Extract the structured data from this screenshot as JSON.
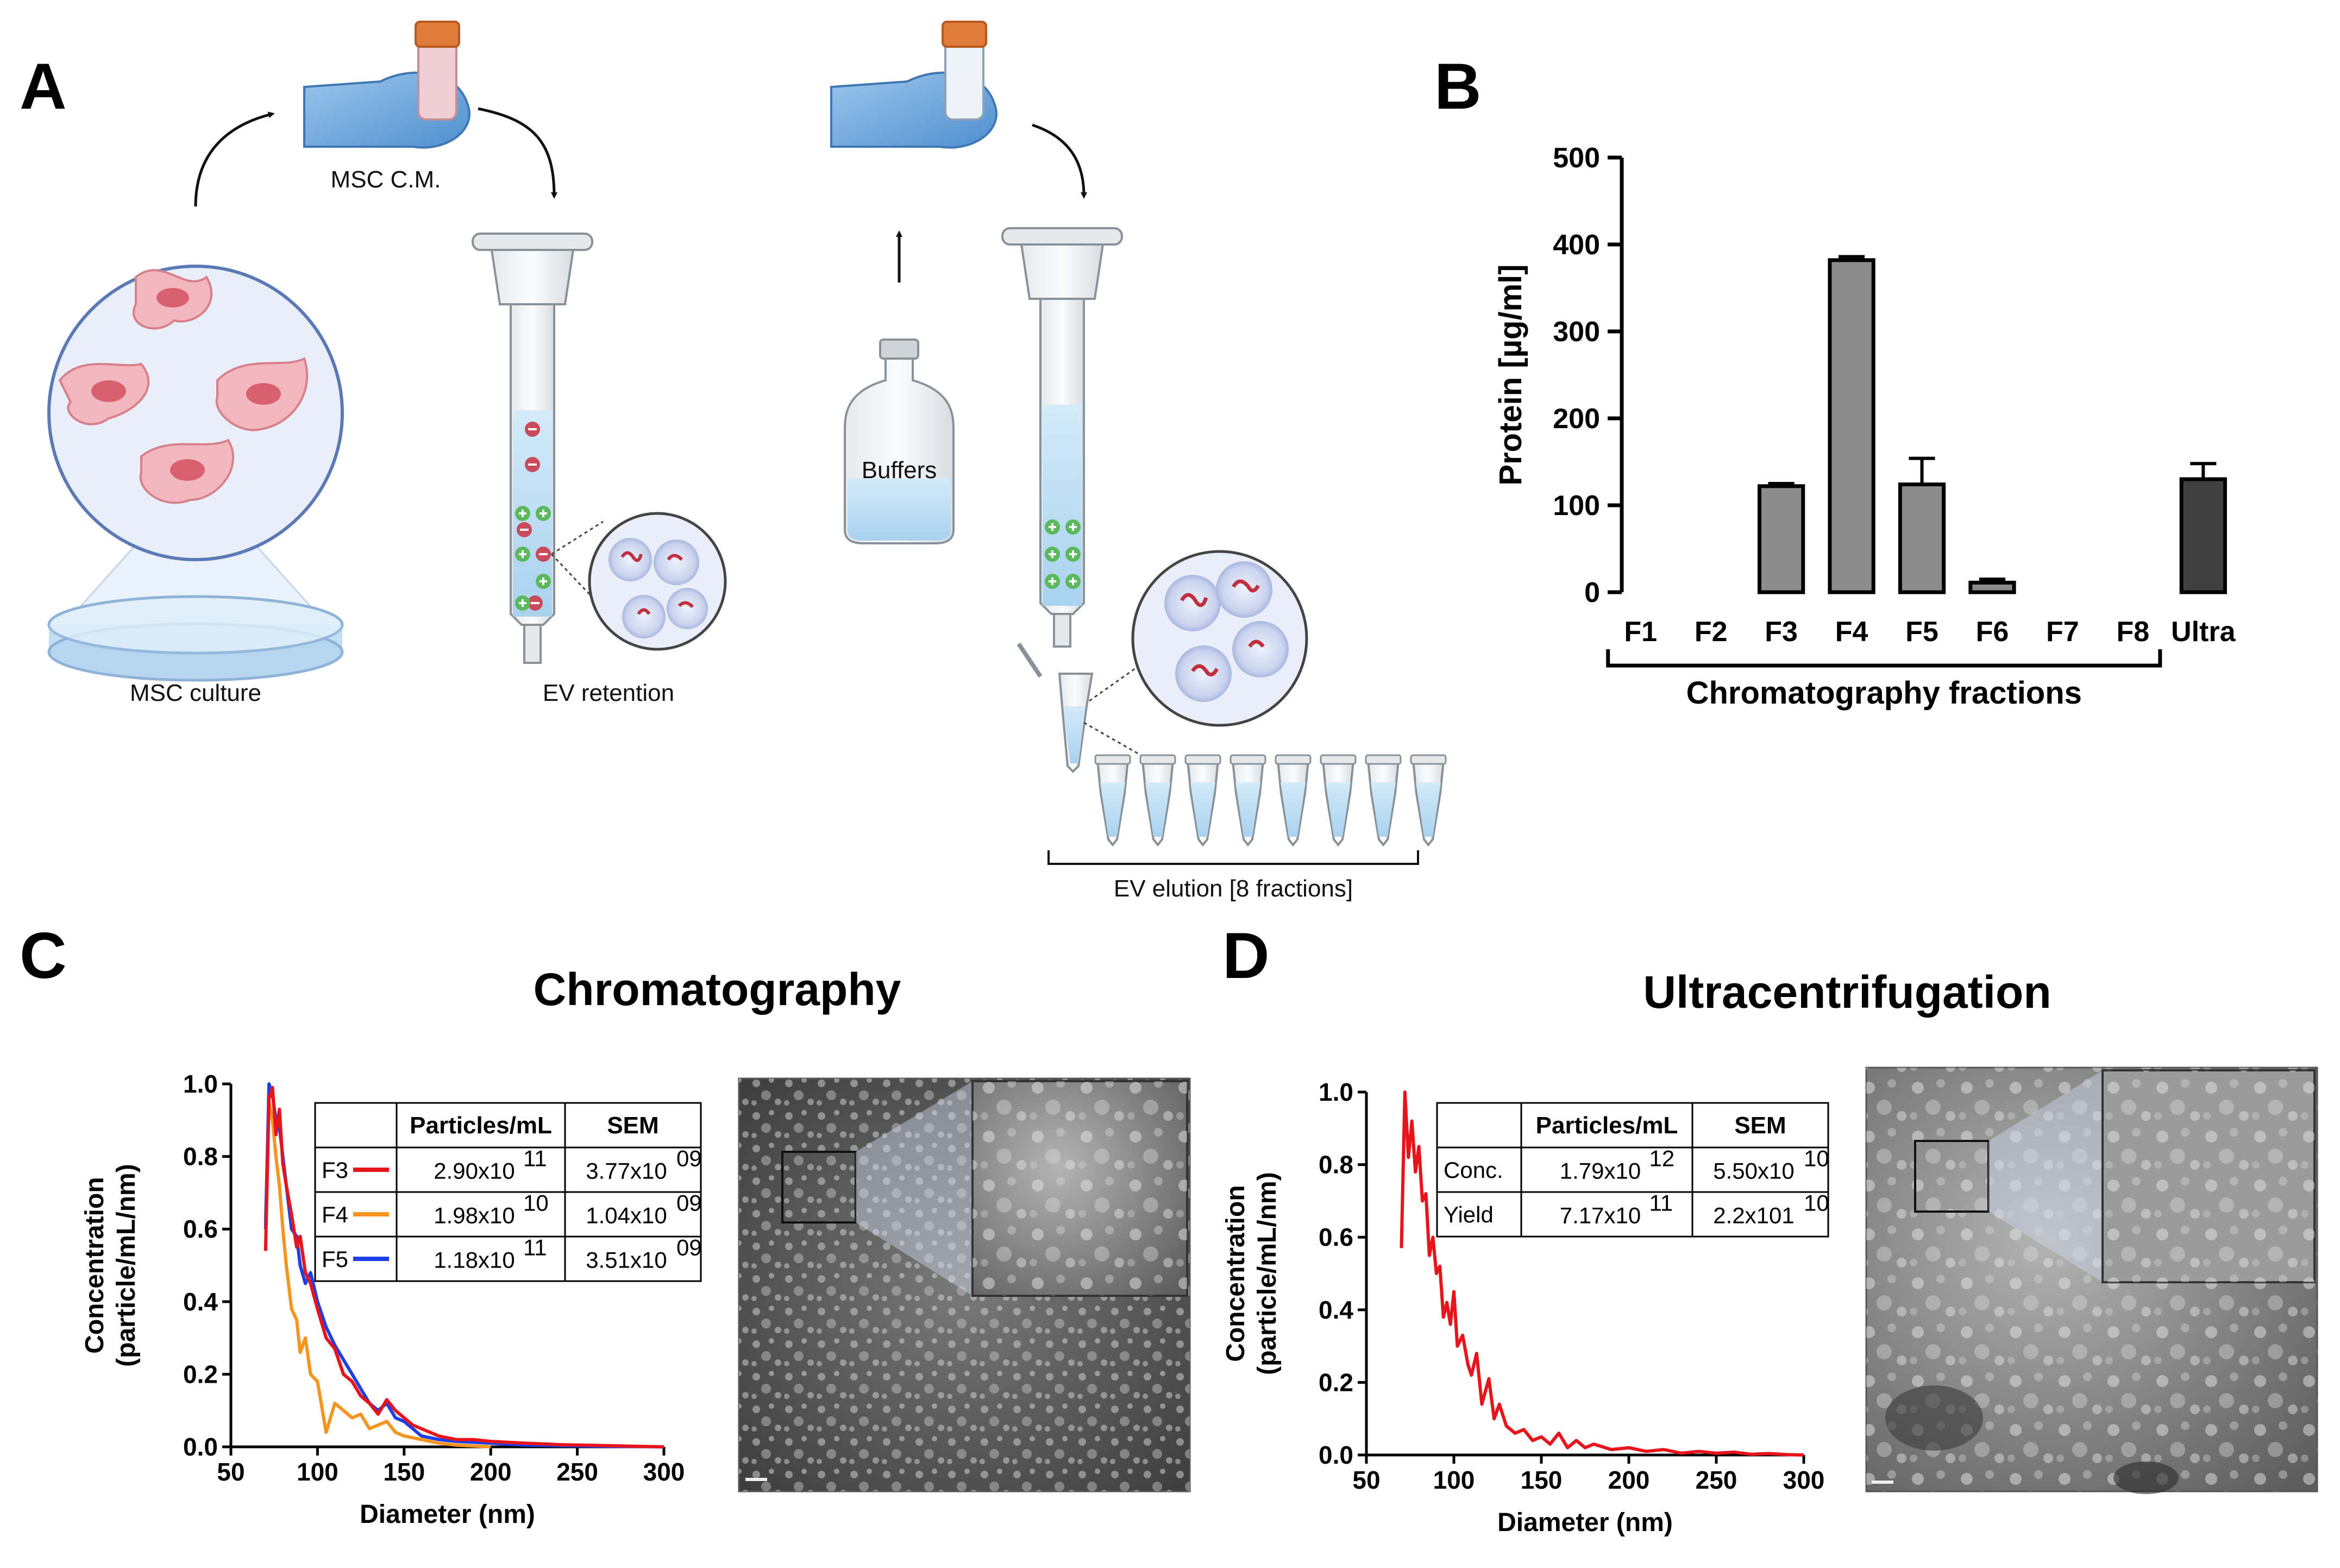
{
  "panels": {
    "a": "A",
    "b": "B",
    "c": "C",
    "d": "D"
  },
  "schematic": {
    "msc_cm": "MSC C.M.",
    "msc_culture": "MSC culture",
    "ev_retention": "EV retention",
    "buffers": "Buffers",
    "ev_elution": "EV elution [8 fractions]"
  },
  "colors": {
    "bar_fraction": "#8c8c8c",
    "bar_ultra": "#404040",
    "line_f3": "#e8141b",
    "line_f4": "#f7941d",
    "line_f5": "#1d3fe8",
    "cell_fill": "#f2b8be",
    "cell_nucleus": "#d9616f",
    "glove": "#6fa8dc",
    "column_liquid": "#bcdcf2"
  },
  "chart_data": [
    {
      "panel": "B",
      "type": "bar",
      "categories": [
        "F1",
        "F2",
        "F3",
        "F4",
        "F5",
        "F6",
        "F7",
        "F8",
        "Ultra"
      ],
      "values": [
        0,
        0,
        122,
        382,
        124,
        11,
        0,
        0,
        130
      ],
      "errors": [
        0,
        0,
        3,
        4,
        30,
        4,
        0,
        0,
        18
      ],
      "ylabel": "Protein [µg/ml]",
      "xlabel": "Chromatography fractions",
      "ylim": [
        0,
        500
      ],
      "yticks": [
        0,
        100,
        200,
        300,
        400,
        500
      ],
      "bracket_spans": [
        "F1",
        "F8"
      ]
    },
    {
      "panel": "C",
      "type": "line",
      "title": "Chromatography",
      "xlabel": "Diameter (nm)",
      "ylabel_line1": "Concentration",
      "ylabel_line2": "(particle/mL/nm)",
      "xlim": [
        50,
        300
      ],
      "ylim": [
        0,
        1.0
      ],
      "xticks": [
        50,
        100,
        150,
        200,
        250,
        300
      ],
      "yticks": [
        "0.0",
        "0.2",
        "0.4",
        "0.6",
        "0.8",
        "1.0"
      ],
      "series": [
        {
          "name": "F3",
          "x": [
            70,
            72,
            74,
            76,
            78,
            80,
            82,
            85,
            88,
            90,
            93,
            96,
            100,
            105,
            110,
            115,
            120,
            125,
            130,
            135,
            140,
            145,
            150,
            155,
            160,
            170,
            180,
            190,
            200,
            220,
            240,
            260,
            280,
            300
          ],
          "y": [
            0.54,
            0.96,
            0.99,
            0.86,
            0.93,
            0.78,
            0.72,
            0.64,
            0.55,
            0.58,
            0.48,
            0.45,
            0.38,
            0.3,
            0.27,
            0.2,
            0.18,
            0.14,
            0.12,
            0.09,
            0.13,
            0.1,
            0.08,
            0.06,
            0.05,
            0.03,
            0.02,
            0.02,
            0.015,
            0.01,
            0.006,
            0.004,
            0.002,
            0.0
          ]
        },
        {
          "name": "F4",
          "x": [
            70,
            72,
            74,
            76,
            78,
            80,
            82,
            85,
            88,
            90,
            93,
            96,
            100,
            105,
            110,
            115,
            120,
            125,
            130,
            135,
            140,
            145,
            150,
            160,
            170,
            180,
            200
          ],
          "y": [
            0.62,
            0.95,
            0.9,
            0.8,
            0.72,
            0.6,
            0.5,
            0.38,
            0.35,
            0.26,
            0.3,
            0.2,
            0.18,
            0.04,
            0.12,
            0.1,
            0.08,
            0.09,
            0.05,
            0.06,
            0.07,
            0.04,
            0.03,
            0.02,
            0.01,
            0.005,
            0.0
          ]
        },
        {
          "name": "F5",
          "x": [
            70,
            72,
            74,
            76,
            78,
            80,
            82,
            85,
            88,
            90,
            93,
            96,
            100,
            105,
            110,
            115,
            120,
            125,
            130,
            135,
            140,
            145,
            150,
            155,
            160,
            170,
            180,
            200,
            220,
            260,
            300
          ],
          "y": [
            0.6,
            1.0,
            0.97,
            0.9,
            0.88,
            0.8,
            0.72,
            0.6,
            0.58,
            0.5,
            0.45,
            0.48,
            0.4,
            0.33,
            0.28,
            0.24,
            0.2,
            0.16,
            0.12,
            0.1,
            0.12,
            0.08,
            0.07,
            0.05,
            0.03,
            0.02,
            0.015,
            0.01,
            0.005,
            0.002,
            0.0
          ]
        }
      ],
      "table": {
        "headers": [
          "",
          "Particles/mL",
          "SEM"
        ],
        "rows": [
          {
            "label": "F3",
            "particles": "2.90x10",
            "particles_exp": "11",
            "sem": "3.77x10",
            "sem_exp": "09"
          },
          {
            "label": "F4",
            "particles": "1.98x10",
            "particles_exp": "10",
            "sem": "1.04x10",
            "sem_exp": "09"
          },
          {
            "label": "F5",
            "particles": "1.18x10",
            "particles_exp": "11",
            "sem": "3.51x10",
            "sem_exp": "09"
          }
        ]
      }
    },
    {
      "panel": "D",
      "type": "line",
      "title": "Ultracentrifugation",
      "xlabel": "Diameter (nm)",
      "ylabel_line1": "Concentration",
      "ylabel_line2": "(particle/mL/nm)",
      "xlim": [
        50,
        300
      ],
      "ylim": [
        0,
        1.0
      ],
      "xticks": [
        50,
        100,
        150,
        200,
        250,
        300
      ],
      "yticks": [
        "0.0",
        "0.2",
        "0.4",
        "0.6",
        "0.8",
        "1.0"
      ],
      "series": [
        {
          "x": [
            70,
            72,
            74,
            76,
            78,
            80,
            82,
            84,
            86,
            88,
            90,
            92,
            94,
            96,
            98,
            100,
            102,
            105,
            108,
            110,
            113,
            116,
            120,
            123,
            126,
            130,
            135,
            140,
            145,
            150,
            155,
            160,
            165,
            170,
            175,
            180,
            190,
            200,
            210,
            220,
            230,
            240,
            250,
            260,
            270,
            280,
            290,
            300
          ],
          "y": [
            0.57,
            1.0,
            0.82,
            0.92,
            0.78,
            0.85,
            0.7,
            0.72,
            0.55,
            0.6,
            0.5,
            0.52,
            0.38,
            0.42,
            0.36,
            0.45,
            0.3,
            0.33,
            0.25,
            0.22,
            0.28,
            0.14,
            0.21,
            0.1,
            0.14,
            0.08,
            0.06,
            0.07,
            0.04,
            0.05,
            0.03,
            0.06,
            0.02,
            0.04,
            0.02,
            0.03,
            0.015,
            0.02,
            0.01,
            0.015,
            0.005,
            0.01,
            0.005,
            0.008,
            0.002,
            0.004,
            0.001,
            0.0
          ]
        }
      ],
      "table": {
        "headers": [
          "",
          "Particles/mL",
          "SEM"
        ],
        "rows": [
          {
            "label": "Conc.",
            "particles": "1.79x10",
            "particles_exp": "12",
            "sem": "5.50x10",
            "sem_exp": "10"
          },
          {
            "label": "Yield",
            "particles": "7.17x10",
            "particles_exp": "11",
            "sem": "2.2x101",
            "sem_exp": "10"
          }
        ]
      }
    }
  ]
}
